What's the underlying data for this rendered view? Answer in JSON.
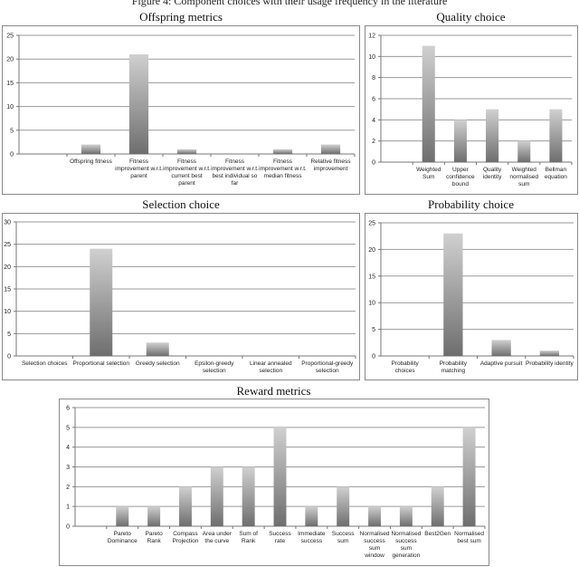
{
  "caption": "Figure 4: Component choices with their usage frequency in the literature",
  "chart_data": [
    {
      "type": "bar",
      "title": "Offspring metrics",
      "categories": [
        "",
        "Offspring fitness",
        "Fitness improvement w.r.t. parent",
        "Fitness improvement w.r.t. current best parent",
        "Fitness improvement w.r.t. best individual so far",
        "Fitness improvement w.r.t. median fitness",
        "Relative fitness improvement"
      ],
      "values": [
        0,
        2,
        21,
        1,
        0,
        1,
        2
      ],
      "ylim": [
        0,
        25
      ],
      "yticks": [
        0,
        5,
        10,
        15,
        20,
        25
      ],
      "grid": true
    },
    {
      "type": "bar",
      "title": "Quality choice",
      "categories": [
        "",
        "Weighted Sum",
        "Upper confidence bound",
        "Quality identity",
        "Weighted normalised sum",
        "Bellman equation"
      ],
      "values": [
        0,
        11,
        4,
        5,
        2,
        5
      ],
      "ylim": [
        0,
        12
      ],
      "yticks": [
        0,
        2,
        4,
        6,
        8,
        10,
        12
      ],
      "grid": true
    },
    {
      "type": "bar",
      "title": "Selection choice",
      "categories": [
        "Selection choices",
        "Proportional selection",
        "Greedy selection",
        "Epsilon-greedy selection",
        "Linear annealed selection",
        "Proportional-greedy selection"
      ],
      "values": [
        0,
        24,
        3,
        0,
        0,
        0
      ],
      "ylim": [
        0,
        30
      ],
      "yticks": [
        0,
        5,
        10,
        15,
        20,
        25,
        30
      ],
      "grid": true
    },
    {
      "type": "bar",
      "title": "Probability choice",
      "categories": [
        "Probability choices",
        "Probability matching",
        "Adaptive pursuit",
        "Probability identity"
      ],
      "values": [
        0,
        23,
        3,
        1
      ],
      "ylim": [
        0,
        25
      ],
      "yticks": [
        0,
        5,
        10,
        15,
        20,
        25
      ],
      "grid": true
    },
    {
      "type": "bar",
      "title": "Reward metrics",
      "categories": [
        "",
        "Pareto Dominance",
        "Pareto Rank",
        "Compass Projection",
        "Area under the curve",
        "Sum of Rank",
        "Success rate",
        "Immediate success",
        "Success sum",
        "Normalised success sum window",
        "Normalised success sum generation",
        "Best2Gen",
        "Normalised best sum"
      ],
      "values": [
        0,
        1,
        1,
        2,
        3,
        3,
        5,
        1,
        2,
        1,
        1,
        2,
        5
      ],
      "ylim": [
        0,
        6
      ],
      "yticks": [
        0,
        1,
        2,
        3,
        4,
        5,
        6
      ],
      "grid": true
    }
  ],
  "colors": {
    "bar_top": "#d0d0d0",
    "bar_bottom": "#6e6e6e",
    "grid": "#9a9a9a",
    "frame": "#8a8a8a"
  }
}
